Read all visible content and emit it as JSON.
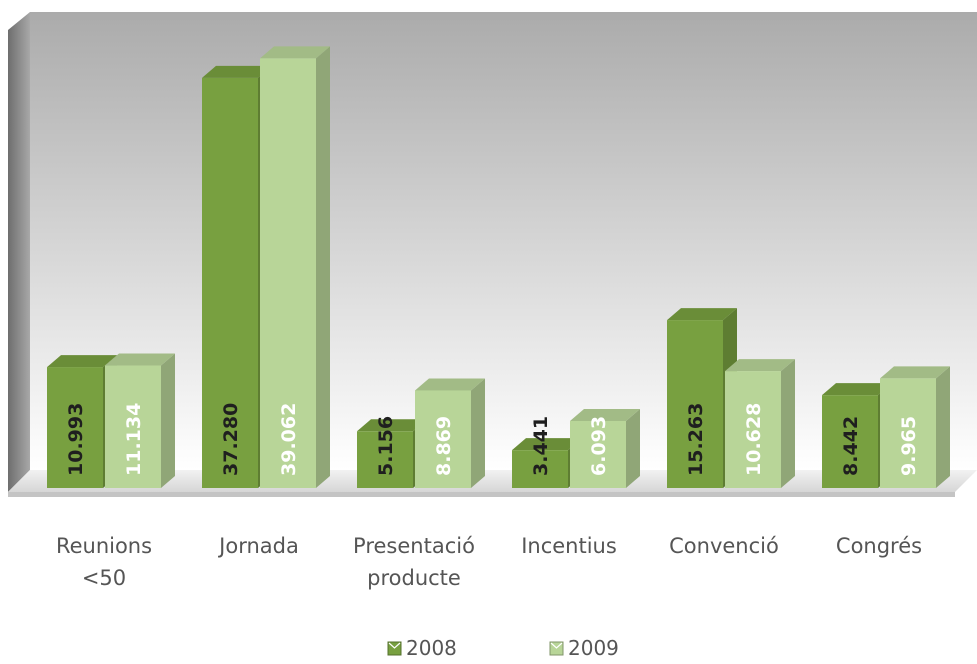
{
  "chart_data": {
    "type": "bar",
    "categories": [
      "Reunions\n<50",
      "Jornada",
      "Presentació\nproducte",
      "Incentius",
      "Convenció",
      "Congrés"
    ],
    "series": [
      {
        "name": "2008",
        "values": [
          10993,
          37280,
          5156,
          3441,
          15263,
          8442
        ],
        "labels": [
          "10.993",
          "37.280",
          "5.156",
          "3.441",
          "15.263",
          "8.442"
        ]
      },
      {
        "name": "2009",
        "values": [
          11134,
          39062,
          8869,
          6093,
          10628,
          9965
        ],
        "labels": [
          "11.134",
          "39.062",
          "8.869",
          "6.093",
          "10.628",
          "9.965"
        ]
      }
    ],
    "ylim": [
      0,
      40000
    ],
    "grid": false,
    "legend_position": "bottom",
    "bar_style": "3d",
    "colors": {
      "series_2008": "#78a040",
      "series_2009": "#b8d598",
      "label_on_2008": "#1f1f1f",
      "label_on_2009": "#ffffff",
      "wall": "#b5b5b5",
      "floor": "#e8e8e8"
    }
  }
}
